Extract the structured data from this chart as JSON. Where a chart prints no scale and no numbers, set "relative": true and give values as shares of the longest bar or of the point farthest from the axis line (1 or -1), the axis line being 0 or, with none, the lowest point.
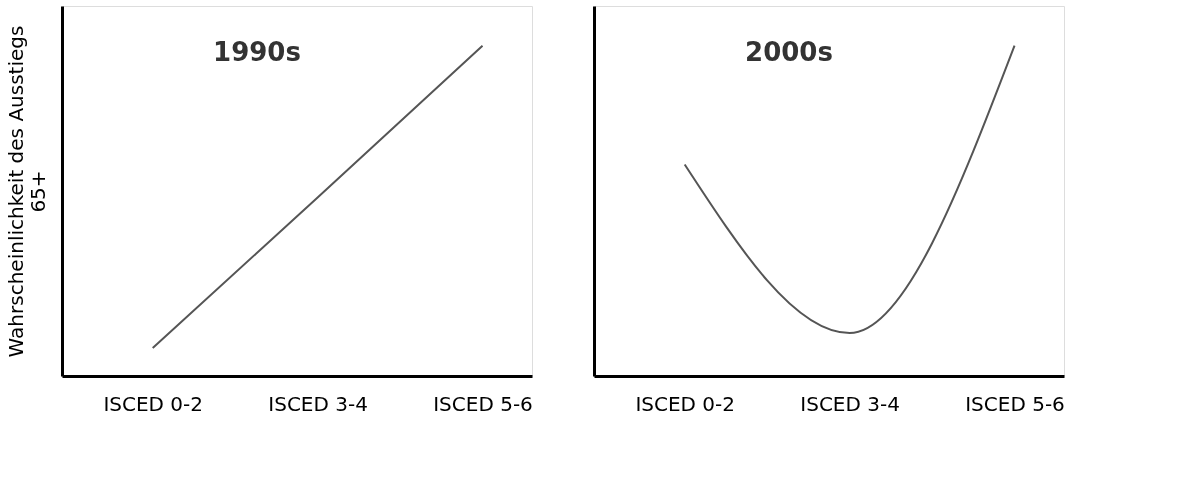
{
  "chart_data": [
    {
      "type": "line",
      "title": "1990s",
      "ylabel": "Wahrscheinlichkeit des Ausstiegs 65+",
      "categories": [
        "ISCED 0-2",
        "ISCED 3-4",
        "ISCED 5-6"
      ],
      "relative": true,
      "tick_labels": "x",
      "grid": false,
      "legend": false,
      "series": [
        {
          "color": "#555555",
          "values": [
            0.085,
            0.54,
            1
          ]
        }
      ]
    },
    {
      "type": "line",
      "title": "2000s",
      "categories": [
        "ISCED 0-2",
        "ISCED 3-4",
        "ISCED 5-6"
      ],
      "relative": true,
      "tick_labels": "x",
      "grid": false,
      "legend": false,
      "series": [
        {
          "color": "#555555",
          "values": [
            0.64,
            0.13,
            1
          ]
        }
      ]
    }
  ]
}
